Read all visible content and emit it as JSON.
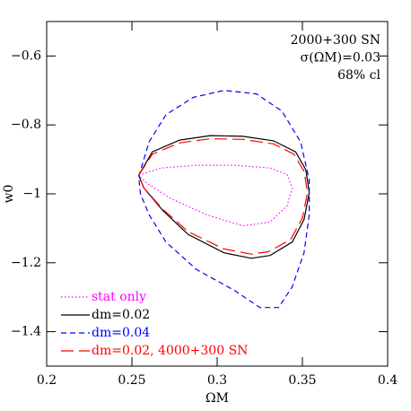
{
  "chart_data": {
    "type": "contour",
    "xlabel": "ΩM",
    "ylabel": "w0",
    "annotations": [
      "2000+300 SN",
      "σ(ΩM)=0.03",
      "68% cl"
    ],
    "xlim": [
      0.2,
      0.4
    ],
    "ylim": [
      -1.5,
      -0.5
    ],
    "xticks": [
      0.2,
      0.25,
      0.3,
      0.35,
      0.4
    ],
    "yticks": [
      {
        "value": -1.4,
        "label": "−1.4"
      },
      {
        "value": -1.2,
        "label": "−1.2"
      },
      {
        "value": -1,
        "label": "−1"
      },
      {
        "value": -0.8,
        "label": "−0.8"
      },
      {
        "value": -0.6,
        "label": "−0.6"
      }
    ],
    "legend": "lower left",
    "series": [
      {
        "name": "stat only",
        "color": "#ff00ff",
        "linestyle": "dotted",
        "x": [
          0.254,
          0.267,
          0.288,
          0.309,
          0.331,
          0.341,
          0.344,
          0.341,
          0.331,
          0.315,
          0.294,
          0.273,
          0.259
        ],
        "values": [
          -0.946,
          -0.925,
          -0.917,
          -0.917,
          -0.925,
          -0.944,
          -0.983,
          -1.035,
          -1.082,
          -1.093,
          -1.061,
          -1.014,
          -0.97
        ]
      },
      {
        "name": "dm=0.02",
        "color": "#000000",
        "linestyle": "solid",
        "x": [
          0.254,
          0.262,
          0.278,
          0.296,
          0.315,
          0.333,
          0.346,
          0.352,
          0.354,
          0.351,
          0.344,
          0.331,
          0.32,
          0.304,
          0.283,
          0.268,
          0.257
        ],
        "values": [
          -0.946,
          -0.878,
          -0.844,
          -0.831,
          -0.833,
          -0.846,
          -0.878,
          -0.93,
          -0.996,
          -1.074,
          -1.14,
          -1.179,
          -1.187,
          -1.171,
          -1.118,
          -1.048,
          -0.983
        ]
      },
      {
        "name": "dm=0.04",
        "color": "#0000ff",
        "linestyle": "dashed",
        "x": [
          0.254,
          0.26,
          0.27,
          0.286,
          0.304,
          0.323,
          0.338,
          0.349,
          0.354,
          0.354,
          0.351,
          0.344,
          0.336,
          0.325,
          0.31,
          0.288,
          0.27,
          0.26,
          0.255
        ],
        "values": [
          -0.95,
          -0.85,
          -0.77,
          -0.72,
          -0.7,
          -0.71,
          -0.76,
          -0.85,
          -0.96,
          -1.06,
          -1.17,
          -1.27,
          -1.33,
          -1.33,
          -1.28,
          -1.22,
          -1.14,
          -1.06,
          -1.0
        ]
      },
      {
        "name": "dm=0.02, 4000+300 SN",
        "color": "#ff0000",
        "linestyle": "longdash",
        "x": [
          0.254,
          0.262,
          0.278,
          0.296,
          0.315,
          0.333,
          0.345,
          0.351,
          0.353,
          0.35,
          0.343,
          0.33,
          0.32,
          0.304,
          0.283,
          0.268,
          0.257
        ],
        "values": [
          -0.946,
          -0.885,
          -0.852,
          -0.84,
          -0.842,
          -0.855,
          -0.885,
          -0.935,
          -0.996,
          -1.07,
          -1.133,
          -1.168,
          -1.175,
          -1.16,
          -1.11,
          -1.044,
          -0.983
        ]
      }
    ]
  }
}
